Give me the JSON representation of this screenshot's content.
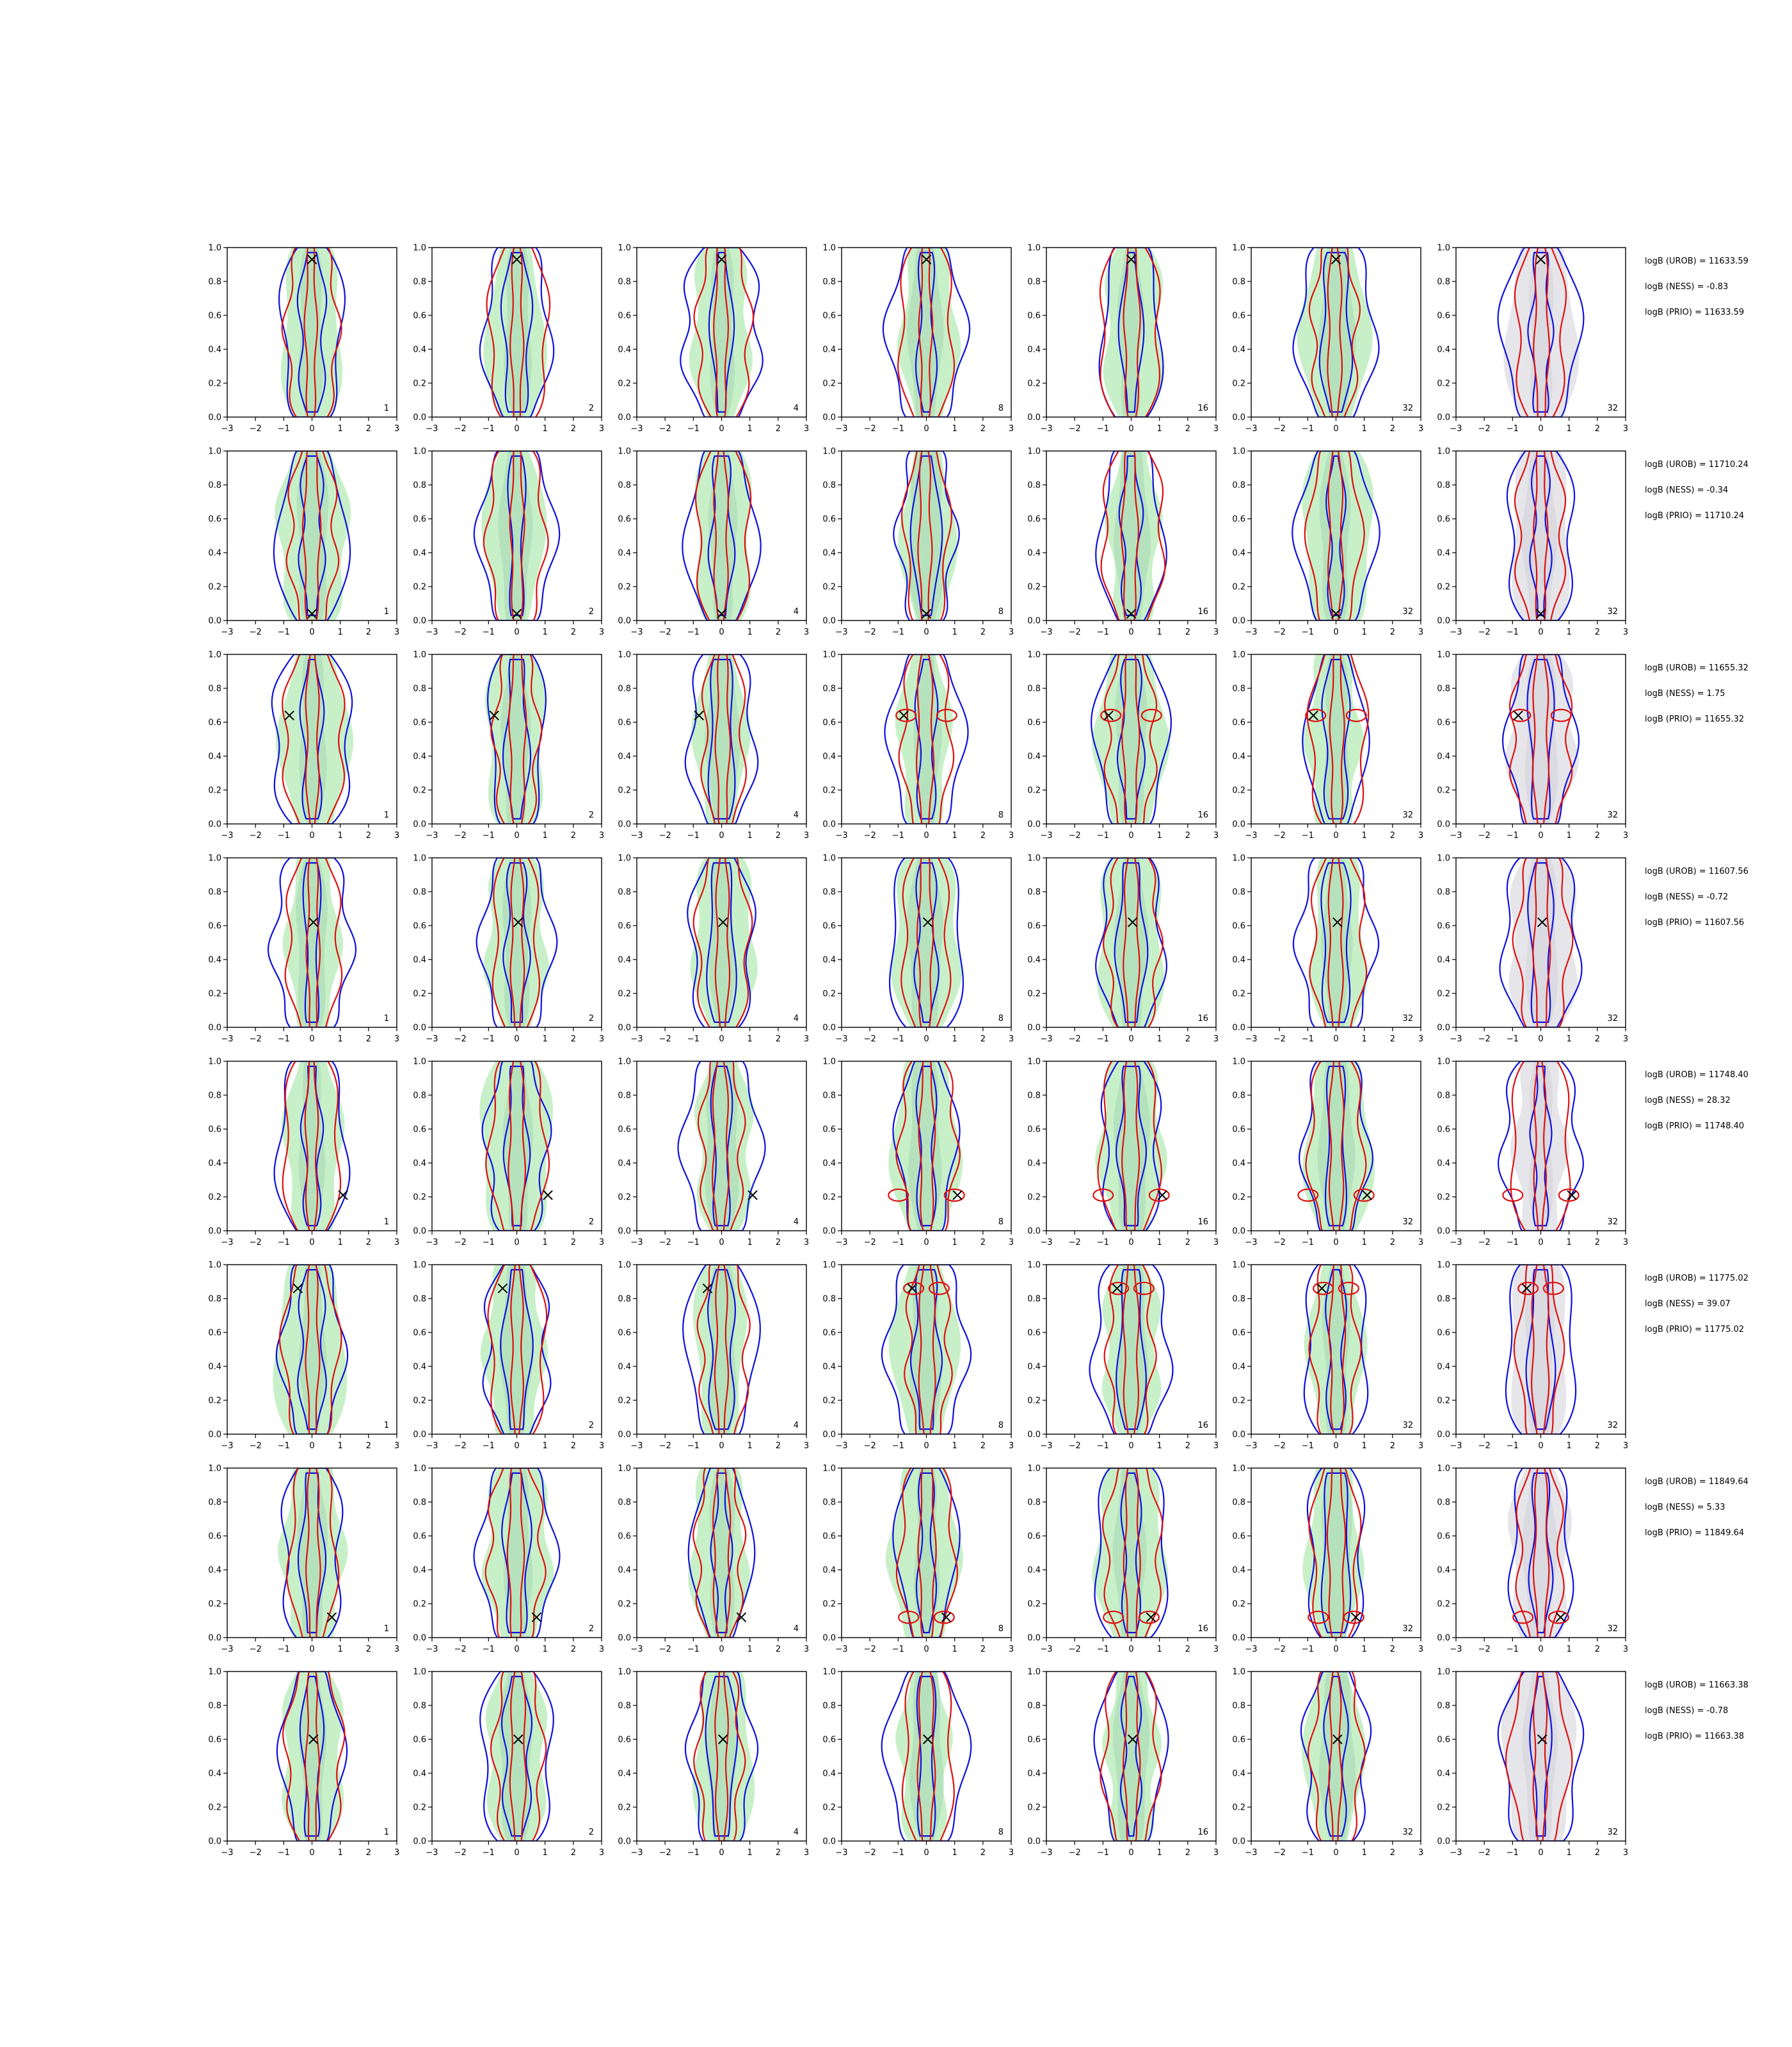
{
  "colors": {
    "posterior_fill": "#c8f0c8",
    "posterior_fill_dark": "#a9d9b4",
    "prior_fill": "#e6e6ea",
    "prior_fill_dark": "#d2d2d8",
    "blue_contour": "#1010dd",
    "red_contour": "#dd1010",
    "marker": "#000000",
    "axes": "#000000"
  },
  "chart_data": {
    "type": "contour-grid",
    "xlim": [
      -3,
      3
    ],
    "ylim": [
      0,
      1
    ],
    "xticks": [
      "−3",
      "−2",
      "−1",
      "0",
      "1",
      "2",
      "3"
    ],
    "yticks": [
      "0.0",
      "0.2",
      "0.4",
      "0.6",
      "0.8",
      "1.0"
    ],
    "column_labels": [
      "1",
      "2",
      "4",
      "8",
      "16",
      "32",
      "32"
    ],
    "prior_column": 6,
    "rows": [
      {
        "marker": [
          0,
          0.93
        ],
        "annotations": [
          "logB (UROB) = 11633.59",
          "logB (NESS) = -0.83",
          "logB (PRIO) = 11633.59"
        ]
      },
      {
        "marker": [
          0,
          0.04
        ],
        "annotations": [
          "logB (UROB) = 11710.24",
          "logB (NESS) = -0.34",
          "logB (PRIO) = 11710.24"
        ]
      },
      {
        "marker": [
          -0.8,
          0.64
        ],
        "annotations": [
          "logB (UROB) = 11655.32",
          "logB (NESS) = 1.75",
          "logB (PRIO) = 11655.32"
        ]
      },
      {
        "marker": [
          0.05,
          0.62
        ],
        "annotations": [
          "logB (UROB) = 11607.56",
          "logB (NESS) = -0.72",
          "logB (PRIO) = 11607.56"
        ]
      },
      {
        "marker": [
          1.1,
          0.21
        ],
        "annotations": [
          "logB (UROB) = 11748.40",
          "logB (NESS) = 28.32",
          "logB (PRIO) = 11748.40"
        ]
      },
      {
        "marker": [
          -0.5,
          0.86
        ],
        "annotations": [
          "logB (UROB) = 11775.02",
          "logB (NESS) = 39.07",
          "logB (PRIO) = 11775.02"
        ]
      },
      {
        "marker": [
          0.7,
          0.12
        ],
        "annotations": [
          "logB (UROB) = 11849.64",
          "logB (NESS) = 5.33",
          "logB (PRIO) = 11849.64"
        ]
      },
      {
        "marker": [
          0.05,
          0.6
        ],
        "annotations": [
          "logB (UROB) = 11663.38",
          "logB (NESS) = -0.78",
          "logB (PRIO) = 11663.38"
        ]
      }
    ]
  }
}
